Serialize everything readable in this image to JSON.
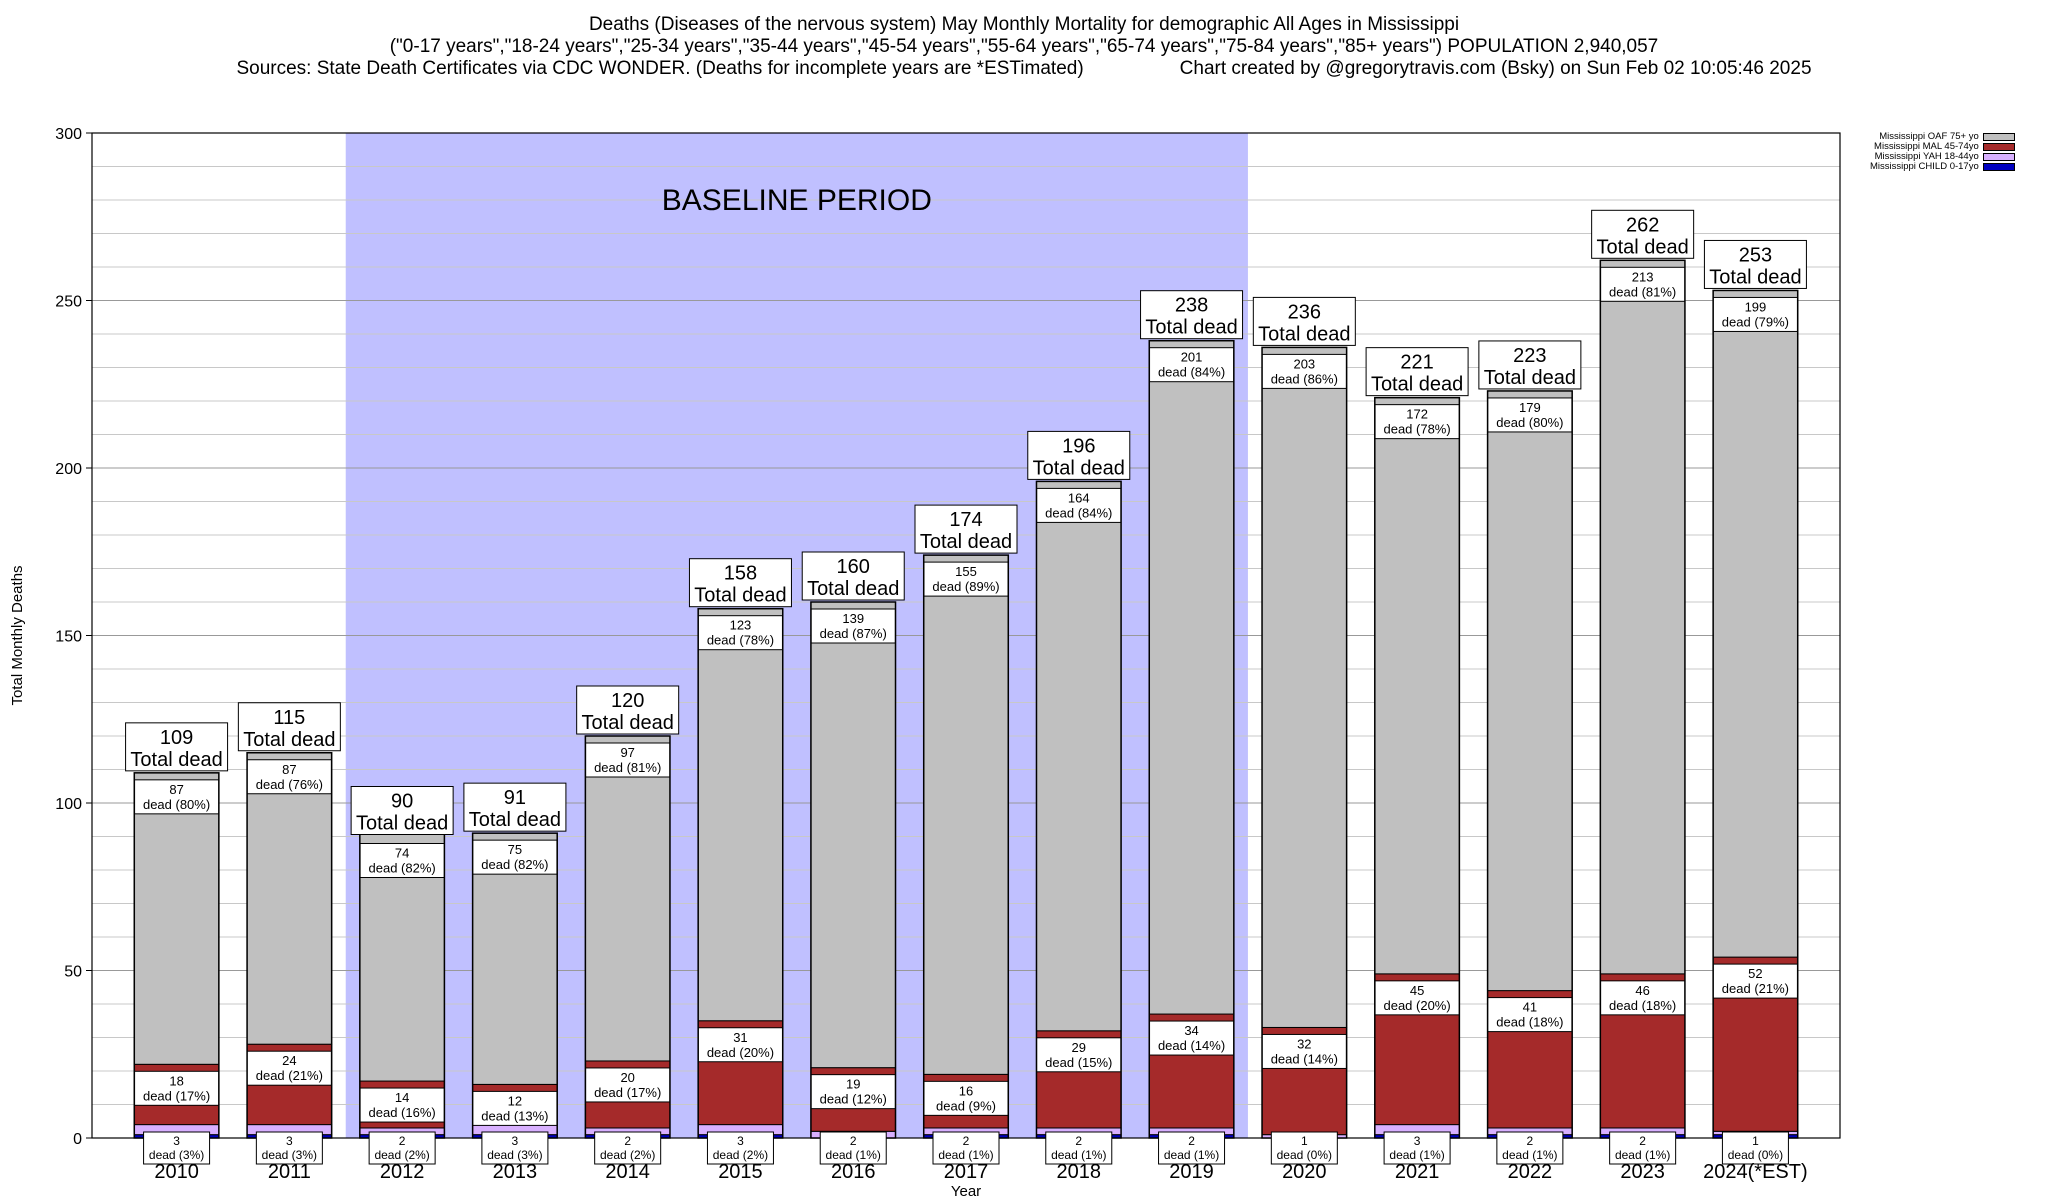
{
  "header": {
    "title": "Deaths (Diseases of the nervous system) May Monthly Mortality for demographic All Ages in Mississippi",
    "subtitle": "(\"0-17 years\",\"18-24 years\",\"25-34 years\",\"35-44 years\",\"45-54 years\",\"55-64 years\",\"65-74 years\",\"75-84 years\",\"85+ years\") POPULATION 2,940,057",
    "sources": "Sources: State Death Certificates via CDC WONDER. (Deaths for incomplete years are *ESTimated)",
    "credit": "Chart created by @gregorytravis.com (Bsky) on Sun Feb 02 10:05:46 2025"
  },
  "chart_data": {
    "type": "bar",
    "stacked": true,
    "xlabel": "Year",
    "ylabel": "Total Monthly Deaths",
    "ylim": [
      0,
      300
    ],
    "yticks": [
      0,
      50,
      100,
      150,
      200,
      250,
      300
    ],
    "grid": true,
    "legend_position": "top-right",
    "categories": [
      "2010",
      "2011",
      "2012",
      "2013",
      "2014",
      "2015",
      "2016",
      "2017",
      "2018",
      "2019",
      "2020",
      "2021",
      "2022",
      "2023",
      "2024(*EST)"
    ],
    "baseline": {
      "label": "BASELINE PERIOD",
      "from": "2012",
      "to": "2019",
      "color": "#c0c0ff"
    },
    "total_label": "Total dead",
    "segment_label_word": "dead",
    "totals": [
      109,
      115,
      90,
      91,
      120,
      158,
      160,
      174,
      196,
      238,
      236,
      221,
      223,
      262,
      253
    ],
    "series": [
      {
        "name": "Mississippi CHILD 0-17yo",
        "color": "#0000c0",
        "values": [
          1,
          1,
          1,
          1,
          1,
          1,
          0,
          1,
          1,
          1,
          0,
          1,
          1,
          1,
          1
        ],
        "labels": []
      },
      {
        "name": "Mississippi YAH 18-44yo",
        "color": "#d8b0ff",
        "values": [
          3,
          3,
          2,
          3,
          2,
          3,
          2,
          2,
          2,
          2,
          1,
          3,
          2,
          2,
          1
        ],
        "labels": [
          "3\ndead (3%)",
          "3\ndead (3%)",
          "2\ndead (2%)",
          "3\ndead (3%)",
          "2\ndead (2%)",
          "3\ndead (2%)",
          "2\ndead (1%)",
          "2\ndead (1%)",
          "2\ndead (1%)",
          "2\ndead (1%)",
          "1\ndead (0%)",
          "3\ndead (1%)",
          "2\ndead (1%)",
          "2\ndead (1%)",
          "1\ndead (0%)"
        ]
      },
      {
        "name": "Mississippi MAL 45-74yo",
        "color": "#a52a2a",
        "values": [
          18,
          24,
          14,
          12,
          20,
          31,
          19,
          16,
          29,
          34,
          32,
          45,
          41,
          46,
          52
        ],
        "labels": [
          "18\ndead (17%)",
          "24\ndead (21%)",
          "14\ndead (16%)",
          "12\ndead (13%)",
          "20\ndead (17%)",
          "31\ndead (20%)",
          "19\ndead (12%)",
          "16\ndead (9%)",
          "29\ndead (15%)",
          "34\ndead (14%)",
          "32\ndead (14%)",
          "45\ndead (20%)",
          "41\ndead (18%)",
          "46\ndead (18%)",
          "52\ndead (21%)"
        ]
      },
      {
        "name": "Mississippi OAF 75+ yo",
        "color": "#c0c0c0",
        "values": [
          87,
          87,
          74,
          75,
          97,
          123,
          139,
          155,
          164,
          201,
          203,
          172,
          179,
          213,
          199
        ],
        "labels": [
          "87\ndead (80%)",
          "87\ndead (76%)",
          "74\ndead (82%)",
          "75\ndead (82%)",
          "97\ndead (81%)",
          "123\ndead (78%)",
          "139\ndead (87%)",
          "155\ndead (89%)",
          "164\ndead (84%)",
          "201\ndead (84%)",
          "203\ndead (86%)",
          "172\ndead (78%)",
          "179\ndead (80%)",
          "213\ndead (81%)",
          "199\ndead (79%)"
        ]
      }
    ],
    "legend": [
      "Mississippi OAF 75+ yo",
      "Mississippi MAL 45-74yo",
      "Mississippi YAH 18-44yo",
      "Mississippi CHILD 0-17yo"
    ]
  }
}
